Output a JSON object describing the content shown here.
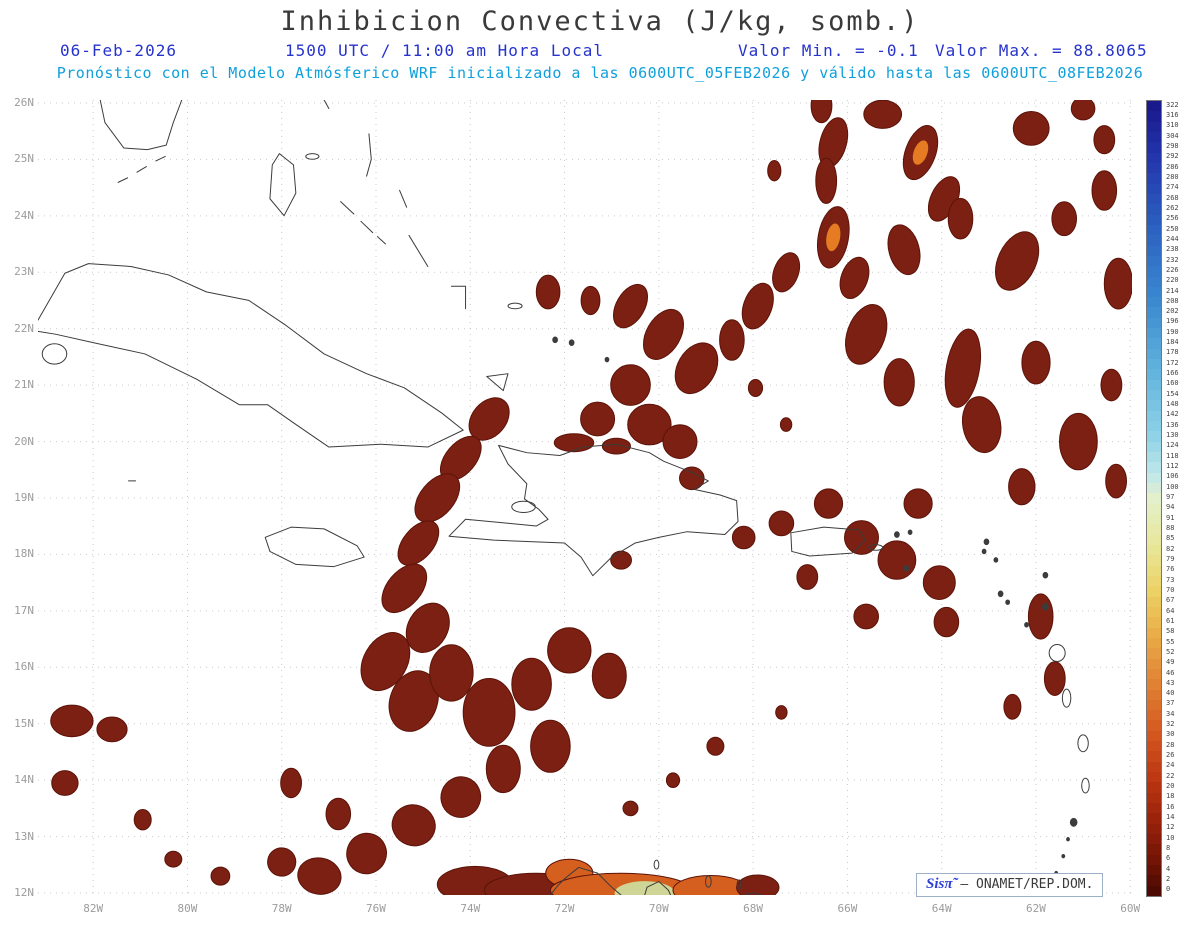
{
  "header": {
    "date": "06-Feb-2026",
    "time": "1500 UTC / 11:00 am Hora Local",
    "valor_min": "Valor Min. = -0.1",
    "valor_max": "Valor Max. = 88.8065",
    "forecast": "Pronóstico con el Modelo Atmósferico WRF inicializado a las 0600UTC_05FEB2026 y válido hasta las  0600UTC_08FEB2026"
  },
  "branding": {
    "logo": "Sisπ̃",
    "credit": "– ONAMET/REP.DOM."
  },
  "colors": {
    "title_gray": "#3a3a3a",
    "header_blue": "#2633cc",
    "header_cyan": "#0fa0dc",
    "axis_gray": "#9c9c9c",
    "grid": "#c9c9c9",
    "coast": "#3c3c3c",
    "blob_dark": "#7b2012",
    "blob_edge": "#5c1309",
    "blob_orange": "#d55f1f",
    "blob_yellow": "#cfd596",
    "blob_core": "#e57b22",
    "logo_blue": "#2d3fd6",
    "credit_gray": "#3a3a3a"
  },
  "chart_data": {
    "type": "heatmap",
    "title": "Inhibicion Convectiva (J/kg, somb.)",
    "units": "J/kg",
    "valor_min": -0.1,
    "valor_max": 88.8065,
    "model": "WRF",
    "init": "0600UTC_05FEB2026",
    "valid_until": "0600UTC_08FEB2026",
    "extent": {
      "west": 83.17,
      "east": 59.96,
      "south": 11.96,
      "north": 26.05
    },
    "lat_ticks": [
      "26N",
      "25N",
      "24N",
      "23N",
      "22N",
      "21N",
      "20N",
      "19N",
      "18N",
      "17N",
      "16N",
      "15N",
      "14N",
      "13N",
      "12N"
    ],
    "lon_ticks": [
      "82W",
      "80W",
      "78W",
      "76W",
      "74W",
      "72W",
      "70W",
      "68W",
      "66W",
      "64W",
      "62W",
      "60W"
    ],
    "colorbar": {
      "labels": [
        "322",
        "316",
        "310",
        "304",
        "298",
        "292",
        "286",
        "280",
        "274",
        "268",
        "262",
        "256",
        "250",
        "244",
        "238",
        "232",
        "226",
        "220",
        "214",
        "208",
        "202",
        "196",
        "190",
        "184",
        "178",
        "172",
        "166",
        "160",
        "154",
        "148",
        "142",
        "136",
        "130",
        "124",
        "118",
        "112",
        "106",
        "100",
        "97",
        "94",
        "91",
        "88",
        "85",
        "82",
        "79",
        "76",
        "73",
        "70",
        "67",
        "64",
        "61",
        "58",
        "55",
        "52",
        "49",
        "46",
        "43",
        "40",
        "37",
        "34",
        "32",
        "30",
        "28",
        "26",
        "24",
        "22",
        "20",
        "18",
        "16",
        "14",
        "12",
        "10",
        "8",
        "6",
        "4",
        "2",
        "0"
      ],
      "stops": [
        [
          0.0,
          "#1a1a8c"
        ],
        [
          0.06,
          "#2233aa"
        ],
        [
          0.15,
          "#2b5fc0"
        ],
        [
          0.25,
          "#3b8ad0"
        ],
        [
          0.34,
          "#62b4de"
        ],
        [
          0.42,
          "#8fd2e8"
        ],
        [
          0.47,
          "#bfe8ea"
        ],
        [
          0.5,
          "#e4f0cc"
        ],
        [
          0.56,
          "#e8e79a"
        ],
        [
          0.62,
          "#ecd064"
        ],
        [
          0.68,
          "#e9a845"
        ],
        [
          0.74,
          "#e07f33"
        ],
        [
          0.8,
          "#d4571f"
        ],
        [
          0.86,
          "#bb3512"
        ],
        [
          0.92,
          "#931f0a"
        ],
        [
          0.97,
          "#6b1205"
        ],
        [
          1.0,
          "#4d0a02"
        ]
      ]
    },
    "shaded_regions": [
      [
        66.55,
        25.95,
        0.22,
        0.3,
        0,
        "d"
      ],
      [
        66.3,
        25.3,
        0.28,
        0.45,
        15,
        "d"
      ],
      [
        66.45,
        24.62,
        0.22,
        0.4,
        0,
        "d"
      ],
      [
        65.25,
        25.8,
        0.4,
        0.25,
        0,
        "d"
      ],
      [
        64.45,
        25.12,
        0.32,
        0.5,
        20,
        "c"
      ],
      [
        63.95,
        24.3,
        0.28,
        0.42,
        25,
        "d"
      ],
      [
        62.1,
        25.55,
        0.38,
        0.3,
        0,
        "d"
      ],
      [
        61.0,
        25.9,
        0.25,
        0.2,
        0,
        "d"
      ],
      [
        60.55,
        25.35,
        0.22,
        0.25,
        0,
        "d"
      ],
      [
        67.55,
        24.8,
        0.14,
        0.18,
        0,
        "d"
      ],
      [
        66.3,
        23.62,
        0.32,
        0.55,
        10,
        "c"
      ],
      [
        65.85,
        22.9,
        0.28,
        0.38,
        20,
        "d"
      ],
      [
        64.8,
        23.4,
        0.32,
        0.45,
        -15,
        "d"
      ],
      [
        63.6,
        23.95,
        0.26,
        0.36,
        0,
        "d"
      ],
      [
        62.4,
        23.2,
        0.4,
        0.55,
        25,
        "d"
      ],
      [
        61.4,
        23.95,
        0.26,
        0.3,
        0,
        "d"
      ],
      [
        60.55,
        24.45,
        0.26,
        0.35,
        0,
        "d"
      ],
      [
        60.25,
        22.8,
        0.3,
        0.45,
        0,
        "d"
      ],
      [
        65.6,
        21.9,
        0.4,
        0.55,
        20,
        "d"
      ],
      [
        64.9,
        21.05,
        0.32,
        0.42,
        0,
        "d"
      ],
      [
        63.55,
        21.3,
        0.35,
        0.7,
        10,
        "d"
      ],
      [
        63.15,
        20.3,
        0.4,
        0.5,
        -10,
        "d"
      ],
      [
        62.0,
        21.4,
        0.3,
        0.38,
        0,
        "d"
      ],
      [
        61.1,
        20.0,
        0.4,
        0.5,
        0,
        "d"
      ],
      [
        62.3,
        19.2,
        0.28,
        0.32,
        0,
        "d"
      ],
      [
        60.4,
        21.0,
        0.22,
        0.28,
        0,
        "d"
      ],
      [
        60.3,
        19.3,
        0.22,
        0.3,
        0,
        "d"
      ],
      [
        72.35,
        22.65,
        0.25,
        0.3,
        0,
        "d"
      ],
      [
        71.45,
        22.5,
        0.2,
        0.25,
        0,
        "d"
      ],
      [
        70.6,
        22.4,
        0.3,
        0.42,
        30,
        "d"
      ],
      [
        69.9,
        21.9,
        0.36,
        0.48,
        30,
        "d"
      ],
      [
        69.2,
        21.3,
        0.4,
        0.48,
        30,
        "d"
      ],
      [
        68.45,
        21.8,
        0.26,
        0.36,
        0,
        "d"
      ],
      [
        67.9,
        22.4,
        0.3,
        0.42,
        20,
        "d"
      ],
      [
        67.3,
        23.0,
        0.26,
        0.36,
        20,
        "d"
      ],
      [
        70.6,
        21.0,
        0.42,
        0.36,
        0,
        "d"
      ],
      [
        71.3,
        20.4,
        0.36,
        0.3,
        0,
        "d"
      ],
      [
        70.2,
        20.3,
        0.46,
        0.36,
        0,
        "d"
      ],
      [
        69.55,
        20.0,
        0.36,
        0.3,
        0,
        "d"
      ],
      [
        67.95,
        20.95,
        0.15,
        0.15,
        0,
        "d"
      ],
      [
        67.3,
        20.3,
        0.12,
        0.12,
        0,
        "d"
      ],
      [
        71.8,
        19.98,
        0.42,
        0.16,
        0,
        "d"
      ],
      [
        70.9,
        19.92,
        0.3,
        0.14,
        0,
        "d"
      ],
      [
        73.6,
        20.4,
        0.36,
        0.42,
        40,
        "d"
      ],
      [
        74.2,
        19.7,
        0.32,
        0.46,
        40,
        "d"
      ],
      [
        74.7,
        19.0,
        0.36,
        0.5,
        40,
        "d"
      ],
      [
        75.1,
        18.2,
        0.32,
        0.46,
        40,
        "d"
      ],
      [
        75.4,
        17.4,
        0.36,
        0.5,
        40,
        "d"
      ],
      [
        74.9,
        16.7,
        0.42,
        0.46,
        30,
        "d"
      ],
      [
        75.8,
        16.1,
        0.46,
        0.55,
        30,
        "d"
      ],
      [
        75.2,
        15.4,
        0.5,
        0.55,
        20,
        "d"
      ],
      [
        74.4,
        15.9,
        0.46,
        0.5,
        0,
        "d"
      ],
      [
        73.6,
        15.2,
        0.55,
        0.6,
        0,
        "d"
      ],
      [
        72.7,
        15.7,
        0.42,
        0.46,
        0,
        "d"
      ],
      [
        71.9,
        16.3,
        0.46,
        0.4,
        0,
        "d"
      ],
      [
        71.05,
        15.85,
        0.36,
        0.4,
        0,
        "d"
      ],
      [
        72.3,
        14.6,
        0.42,
        0.46,
        0,
        "d"
      ],
      [
        73.3,
        14.2,
        0.36,
        0.42,
        0,
        "d"
      ],
      [
        74.2,
        13.7,
        0.42,
        0.36,
        20,
        "d"
      ],
      [
        75.2,
        13.2,
        0.46,
        0.36,
        20,
        "d"
      ],
      [
        76.2,
        12.7,
        0.42,
        0.36,
        20,
        "d"
      ],
      [
        77.2,
        12.3,
        0.46,
        0.32,
        10,
        "d"
      ],
      [
        76.8,
        13.4,
        0.26,
        0.28,
        0,
        "d"
      ],
      [
        77.8,
        13.95,
        0.22,
        0.26,
        0,
        "d"
      ],
      [
        78.0,
        12.55,
        0.3,
        0.25,
        10,
        "d"
      ],
      [
        82.45,
        15.05,
        0.45,
        0.28,
        0,
        "d"
      ],
      [
        81.6,
        14.9,
        0.32,
        0.22,
        0,
        "d"
      ],
      [
        82.6,
        13.95,
        0.28,
        0.22,
        0,
        "d"
      ],
      [
        80.95,
        13.3,
        0.18,
        0.18,
        0,
        "d"
      ],
      [
        80.3,
        12.6,
        0.18,
        0.14,
        0,
        "d"
      ],
      [
        79.3,
        12.3,
        0.2,
        0.16,
        0,
        "d"
      ],
      [
        67.4,
        18.55,
        0.26,
        0.22,
        0,
        "d"
      ],
      [
        66.4,
        18.9,
        0.3,
        0.26,
        0,
        "d"
      ],
      [
        65.7,
        18.3,
        0.36,
        0.3,
        0,
        "d"
      ],
      [
        64.95,
        17.9,
        0.4,
        0.34,
        0,
        "d"
      ],
      [
        64.05,
        17.5,
        0.34,
        0.3,
        0,
        "d"
      ],
      [
        64.5,
        18.9,
        0.3,
        0.26,
        0,
        "d"
      ],
      [
        63.9,
        16.8,
        0.26,
        0.26,
        0,
        "d"
      ],
      [
        65.6,
        16.9,
        0.26,
        0.22,
        0,
        "d"
      ],
      [
        66.85,
        17.6,
        0.22,
        0.22,
        0,
        "d"
      ],
      [
        68.2,
        18.3,
        0.24,
        0.2,
        0,
        "d"
      ],
      [
        69.3,
        19.35,
        0.26,
        0.2,
        0,
        "d"
      ],
      [
        70.8,
        17.9,
        0.22,
        0.16,
        0,
        "d"
      ],
      [
        61.9,
        16.9,
        0.26,
        0.4,
        0,
        "d"
      ],
      [
        61.6,
        15.8,
        0.22,
        0.3,
        0,
        "d"
      ],
      [
        62.5,
        15.3,
        0.18,
        0.22,
        0,
        "d"
      ],
      [
        69.7,
        14.0,
        0.14,
        0.13,
        0,
        "d"
      ],
      [
        68.8,
        14.6,
        0.18,
        0.16,
        0,
        "d"
      ],
      [
        70.6,
        13.5,
        0.16,
        0.13,
        0,
        "d"
      ],
      [
        67.4,
        15.2,
        0.12,
        0.12,
        0,
        "d"
      ],
      [
        73.9,
        12.15,
        0.8,
        0.32,
        0,
        "d"
      ],
      [
        72.6,
        12.05,
        1.1,
        0.3,
        0,
        "d"
      ],
      [
        71.9,
        12.35,
        0.5,
        0.25,
        0,
        "o"
      ],
      [
        70.8,
        12.05,
        1.5,
        0.3,
        0,
        "o"
      ],
      [
        70.3,
        12.0,
        0.65,
        0.22,
        0,
        "y"
      ],
      [
        68.9,
        12.05,
        0.8,
        0.26,
        0,
        "o"
      ],
      [
        67.9,
        12.1,
        0.45,
        0.22,
        0,
        "d"
      ]
    ]
  }
}
